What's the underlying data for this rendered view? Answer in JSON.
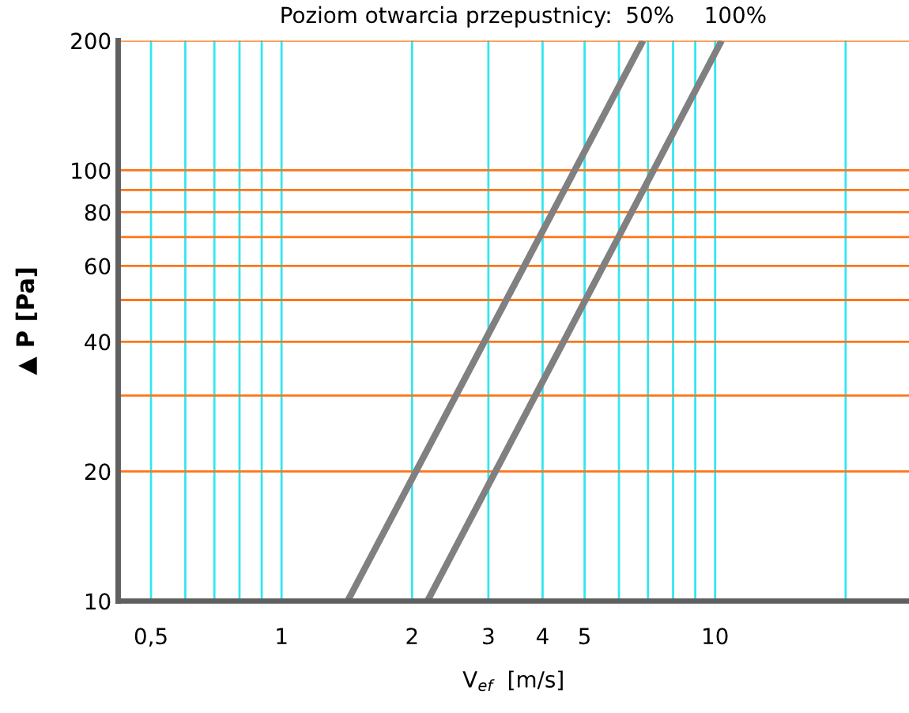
{
  "chart_data": {
    "type": "line",
    "legend_title": "Poziom otwarcia przepustnicy:",
    "xlabel": "V$_{ef}$  [m/s]",
    "ylabel": "▲ P [Pa]",
    "log": "xy",
    "grid": true,
    "marker": "none",
    "line_style": "solid",
    "xlim": [
      0.42,
      28
    ],
    "ylim": [
      10,
      200
    ],
    "xticks": [
      {
        "value": 0.5,
        "label": "0,5"
      },
      {
        "value": 0.6,
        "label": null
      },
      {
        "value": 0.7,
        "label": null
      },
      {
        "value": 0.8,
        "label": null
      },
      {
        "value": 0.9,
        "label": null
      },
      1,
      2,
      3,
      4,
      5,
      {
        "value": 6,
        "label": null
      },
      {
        "value": 7,
        "label": null
      },
      {
        "value": 8,
        "label": null
      },
      {
        "value": 9,
        "label": null
      },
      10,
      {
        "value": 20,
        "label": null
      }
    ],
    "yticks": [
      10,
      20,
      {
        "value": 30,
        "label": null
      },
      40,
      {
        "value": 50,
        "label": null
      },
      60,
      {
        "value": 70,
        "label": null
      },
      80,
      {
        "value": 90,
        "label": null
      },
      100,
      200
    ],
    "series": [
      {
        "name": "50%",
        "color": "#808080",
        "x": [
          1.42,
          6.82
        ],
        "values": [
          10,
          200
        ]
      },
      {
        "name": "100%",
        "color": "#808080",
        "x": [
          2.17,
          10.35
        ],
        "values": [
          10,
          200
        ]
      }
    ]
  }
}
